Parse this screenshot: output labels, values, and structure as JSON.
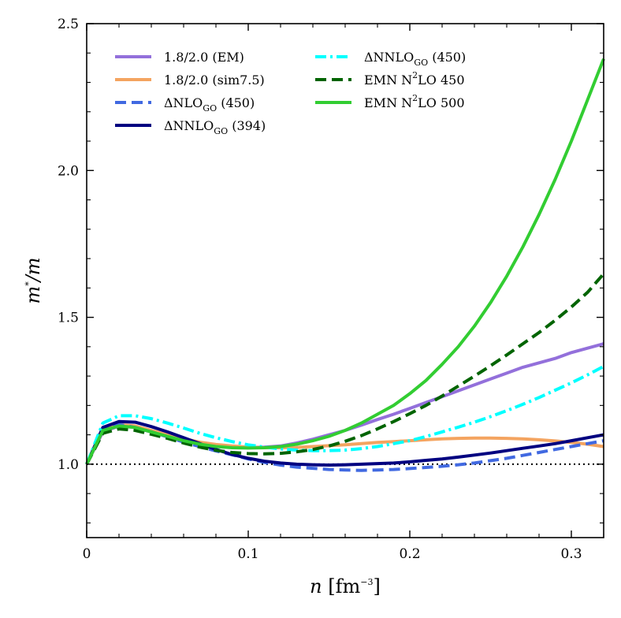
{
  "chart_data": {
    "type": "line",
    "title": "",
    "xlabel": {
      "var": "n",
      "unit_pre": " [fm",
      "unit_exp": "−3",
      "unit_post": "]"
    },
    "ylabel": {
      "var": "m",
      "sup": "*",
      "rest": "/m"
    },
    "xlim": [
      0,
      0.32
    ],
    "ylim": [
      0.75,
      2.5
    ],
    "xticks": [
      0,
      0.1,
      0.2,
      0.3
    ],
    "xtick_labels": [
      "0",
      "0.1",
      "0.2",
      "0.3"
    ],
    "yticks": [
      1.0,
      1.5,
      2.0,
      2.5
    ],
    "ytick_labels": [
      "1.0",
      "1.5",
      "2.0",
      "2.5"
    ],
    "reference_line": {
      "y": 1.0,
      "style": "dotted",
      "color": "#000000"
    },
    "series": [
      {
        "name": "1.8/2.0 (EM)",
        "legend": {
          "main": "1.8/2.0 (EM)"
        },
        "color": "#9370db",
        "dash": "solid",
        "x": [
          0,
          0.01,
          0.02,
          0.03,
          0.04,
          0.05,
          0.06,
          0.07,
          0.08,
          0.09,
          0.1,
          0.11,
          0.12,
          0.13,
          0.14,
          0.15,
          0.16,
          0.17,
          0.18,
          0.19,
          0.2,
          0.21,
          0.22,
          0.23,
          0.24,
          0.25,
          0.26,
          0.27,
          0.28,
          0.29,
          0.3,
          0.31,
          0.32
        ],
        "y": [
          1.0,
          1.11,
          1.13,
          1.125,
          1.11,
          1.095,
          1.08,
          1.07,
          1.062,
          1.058,
          1.057,
          1.058,
          1.062,
          1.072,
          1.085,
          1.1,
          1.115,
          1.133,
          1.152,
          1.17,
          1.19,
          1.21,
          1.23,
          1.25,
          1.27,
          1.29,
          1.31,
          1.33,
          1.345,
          1.36,
          1.38,
          1.395,
          1.41
        ]
      },
      {
        "name": "1.8/2.0 (sim7.5)",
        "legend": {
          "main": "1.8/2.0 (sim7.5)"
        },
        "color": "#f4a460",
        "dash": "solid",
        "x": [
          0,
          0.01,
          0.02,
          0.03,
          0.04,
          0.05,
          0.06,
          0.07,
          0.08,
          0.09,
          0.1,
          0.11,
          0.12,
          0.13,
          0.14,
          0.15,
          0.16,
          0.17,
          0.18,
          0.19,
          0.2,
          0.21,
          0.22,
          0.23,
          0.24,
          0.25,
          0.26,
          0.27,
          0.28,
          0.29,
          0.3,
          0.31,
          0.32
        ],
        "y": [
          1.0,
          1.115,
          1.135,
          1.13,
          1.115,
          1.1,
          1.087,
          1.075,
          1.067,
          1.062,
          1.058,
          1.056,
          1.056,
          1.057,
          1.06,
          1.063,
          1.066,
          1.07,
          1.074,
          1.077,
          1.08,
          1.083,
          1.086,
          1.088,
          1.089,
          1.089,
          1.088,
          1.086,
          1.083,
          1.079,
          1.074,
          1.068,
          1.06
        ]
      },
      {
        "name": "ΔNLO_GO (450)",
        "legend": {
          "main": "ΔNLO",
          "sub": "GO",
          "tail": " (450)"
        },
        "color": "#4169e1",
        "dash": "dashed",
        "x": [
          0,
          0.01,
          0.02,
          0.03,
          0.04,
          0.05,
          0.06,
          0.07,
          0.08,
          0.09,
          0.1,
          0.11,
          0.12,
          0.13,
          0.14,
          0.15,
          0.16,
          0.17,
          0.18,
          0.19,
          0.2,
          0.21,
          0.22,
          0.23,
          0.24,
          0.25,
          0.26,
          0.27,
          0.28,
          0.29,
          0.3,
          0.31,
          0.32
        ],
        "y": [
          1.0,
          1.12,
          1.135,
          1.125,
          1.11,
          1.093,
          1.075,
          1.06,
          1.045,
          1.032,
          1.018,
          1.006,
          0.997,
          0.99,
          0.986,
          0.982,
          0.98,
          0.979,
          0.98,
          0.982,
          0.985,
          0.989,
          0.993,
          0.998,
          1.004,
          1.012,
          1.02,
          1.03,
          1.04,
          1.05,
          1.06,
          1.07,
          1.08
        ]
      },
      {
        "name": "ΔNNLO_GO (394)",
        "legend": {
          "main": "ΔNNLO",
          "sub": "GO",
          "tail": " (394)"
        },
        "color": "#000080",
        "dash": "solid",
        "x": [
          0,
          0.01,
          0.02,
          0.03,
          0.04,
          0.05,
          0.06,
          0.07,
          0.08,
          0.09,
          0.1,
          0.11,
          0.12,
          0.13,
          0.14,
          0.15,
          0.16,
          0.17,
          0.18,
          0.19,
          0.2,
          0.21,
          0.22,
          0.23,
          0.24,
          0.25,
          0.26,
          0.27,
          0.28,
          0.29,
          0.3,
          0.31,
          0.32
        ],
        "y": [
          1.0,
          1.125,
          1.145,
          1.143,
          1.128,
          1.11,
          1.09,
          1.07,
          1.05,
          1.033,
          1.02,
          1.01,
          1.004,
          1.0,
          0.998,
          0.997,
          0.998,
          1.0,
          1.002,
          1.004,
          1.008,
          1.013,
          1.018,
          1.024,
          1.031,
          1.038,
          1.046,
          1.054,
          1.062,
          1.07,
          1.08,
          1.09,
          1.1
        ]
      },
      {
        "name": "ΔNNLO_GO (450)",
        "legend": {
          "main": "ΔNNLO",
          "sub": "GO",
          "tail": " (450)"
        },
        "color": "#00ffff",
        "dash": "dashdot",
        "x": [
          0,
          0.01,
          0.02,
          0.03,
          0.04,
          0.05,
          0.06,
          0.07,
          0.08,
          0.09,
          0.1,
          0.11,
          0.12,
          0.13,
          0.14,
          0.15,
          0.16,
          0.17,
          0.18,
          0.19,
          0.2,
          0.21,
          0.22,
          0.23,
          0.24,
          0.25,
          0.26,
          0.27,
          0.28,
          0.29,
          0.3,
          0.31,
          0.32
        ],
        "y": [
          1.0,
          1.14,
          1.165,
          1.165,
          1.155,
          1.14,
          1.123,
          1.105,
          1.09,
          1.077,
          1.066,
          1.058,
          1.052,
          1.048,
          1.046,
          1.046,
          1.048,
          1.053,
          1.06,
          1.07,
          1.08,
          1.094,
          1.11,
          1.126,
          1.143,
          1.162,
          1.182,
          1.204,
          1.227,
          1.252,
          1.277,
          1.304,
          1.333
        ]
      },
      {
        "name": "EMN N2LO 450",
        "legend": {
          "main": "EMN N",
          "sup": "2",
          "tail": "LO 450"
        },
        "color": "#006400",
        "dash": "dashed",
        "x": [
          0,
          0.01,
          0.02,
          0.03,
          0.04,
          0.05,
          0.06,
          0.07,
          0.08,
          0.09,
          0.1,
          0.11,
          0.12,
          0.13,
          0.14,
          0.15,
          0.16,
          0.17,
          0.18,
          0.19,
          0.2,
          0.21,
          0.22,
          0.23,
          0.24,
          0.25,
          0.26,
          0.27,
          0.28,
          0.29,
          0.3,
          0.31,
          0.32
        ],
        "y": [
          1.0,
          1.105,
          1.12,
          1.115,
          1.102,
          1.088,
          1.072,
          1.058,
          1.047,
          1.04,
          1.036,
          1.035,
          1.037,
          1.042,
          1.05,
          1.062,
          1.078,
          1.097,
          1.12,
          1.145,
          1.172,
          1.2,
          1.232,
          1.266,
          1.3,
          1.335,
          1.372,
          1.41,
          1.448,
          1.49,
          1.535,
          1.585,
          1.648
        ]
      },
      {
        "name": "EMN N2LO 500",
        "legend": {
          "main": "EMN N",
          "sup": "2",
          "tail": "LO 500"
        },
        "color": "#32cd32",
        "dash": "solid",
        "x": [
          0,
          0.01,
          0.02,
          0.03,
          0.04,
          0.05,
          0.06,
          0.07,
          0.08,
          0.09,
          0.1,
          0.11,
          0.12,
          0.13,
          0.14,
          0.15,
          0.16,
          0.17,
          0.18,
          0.19,
          0.2,
          0.21,
          0.22,
          0.23,
          0.24,
          0.25,
          0.26,
          0.27,
          0.28,
          0.29,
          0.3,
          0.31,
          0.32
        ],
        "y": [
          1.0,
          1.115,
          1.13,
          1.125,
          1.11,
          1.095,
          1.08,
          1.068,
          1.06,
          1.056,
          1.055,
          1.056,
          1.06,
          1.068,
          1.08,
          1.095,
          1.115,
          1.14,
          1.17,
          1.2,
          1.24,
          1.285,
          1.34,
          1.4,
          1.47,
          1.55,
          1.64,
          1.74,
          1.85,
          1.97,
          2.1,
          2.24,
          2.38
        ]
      }
    ]
  }
}
